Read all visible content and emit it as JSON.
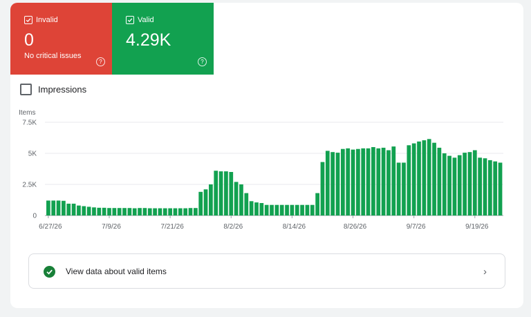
{
  "tiles": {
    "invalid": {
      "label": "Invalid",
      "value": "0",
      "subtitle": "No critical issues",
      "color": "#de4437",
      "icons": [
        "checkbox-checked-icon",
        "help-icon"
      ]
    },
    "valid": {
      "label": "Valid",
      "value": "4.29K",
      "color": "#12a150",
      "icons": [
        "checkbox-checked-icon",
        "help-icon"
      ]
    }
  },
  "impressions": {
    "label": "Impressions",
    "checked": false
  },
  "chart_data": {
    "type": "bar",
    "ylabel": "Items",
    "y_ticks": [
      "0",
      "2.5K",
      "5K",
      "7.5K"
    ],
    "ylim": [
      0,
      7500
    ],
    "x_tick_labels": [
      "6/27/26",
      "7/9/26",
      "7/21/26",
      "8/2/26",
      "8/14/26",
      "8/26/26",
      "9/7/26",
      "9/19/26"
    ],
    "grid": true,
    "bar_color": "#12a150",
    "x_start": "6/27/26",
    "values": [
      1200,
      1200,
      1200,
      1180,
      950,
      950,
      800,
      750,
      700,
      650,
      620,
      620,
      600,
      600,
      600,
      600,
      600,
      580,
      600,
      600,
      580,
      580,
      580,
      580,
      580,
      580,
      580,
      580,
      600,
      600,
      1900,
      2100,
      2500,
      3600,
      3550,
      3550,
      3500,
      2700,
      2500,
      1800,
      1150,
      1050,
      1000,
      850,
      850,
      850,
      850,
      850,
      850,
      850,
      850,
      850,
      850,
      1800,
      4300,
      5200,
      5100,
      5050,
      5350,
      5400,
      5300,
      5350,
      5400,
      5400,
      5500,
      5400,
      5450,
      5250,
      5550,
      4250,
      4250,
      5650,
      5800,
      5950,
      6050,
      6150,
      5850,
      5450,
      5000,
      4800,
      4650,
      4850,
      5050,
      5100,
      5250,
      4650,
      4600,
      4450,
      4350,
      4250
    ]
  },
  "action": {
    "label": "View data about valid items",
    "icons": [
      "check-circle-icon",
      "chevron-right-icon"
    ]
  }
}
